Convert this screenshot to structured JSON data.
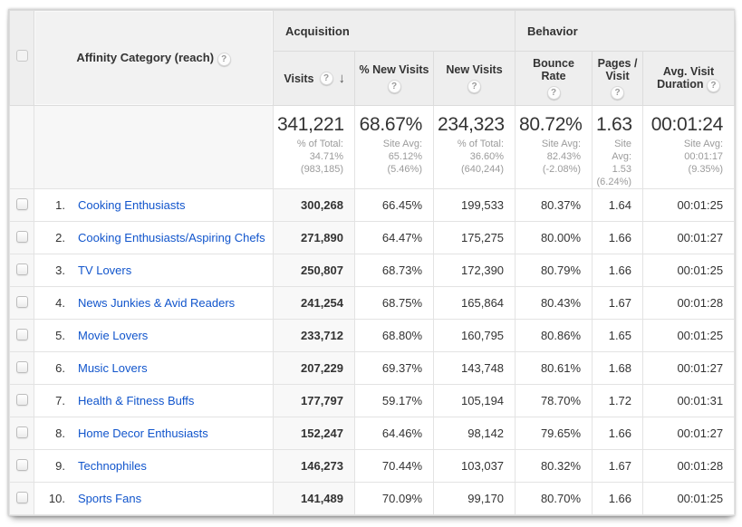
{
  "colors": {
    "link_blue": "#1155cc",
    "header_bg": "#eeeeee",
    "sorted_col_bg": "#f8f8f8"
  },
  "table": {
    "dimension_header": "Affinity Category (reach)",
    "group_headers": {
      "acquisition": "Acquisition",
      "behavior": "Behavior"
    },
    "columns": [
      {
        "label": "Visits",
        "sorted": "descending"
      },
      {
        "label": "% New Visits"
      },
      {
        "label": "New Visits"
      },
      {
        "label": "Bounce Rate"
      },
      {
        "label": "Pages / Visit"
      },
      {
        "label": "Avg. Visit Duration"
      }
    ],
    "icons": {
      "help": "?",
      "sort_descending": "↓"
    },
    "summary": {
      "visits": {
        "value": "341,221",
        "sub": [
          "% of Total:",
          "34.71%",
          "(983,185)"
        ]
      },
      "pct_new_visits": {
        "value": "68.67%",
        "sub": [
          "Site Avg:",
          "65.12%",
          "(5.46%)"
        ]
      },
      "new_visits": {
        "value": "234,323",
        "sub": [
          "% of Total:",
          "36.60%",
          "(640,244)"
        ]
      },
      "bounce_rate": {
        "value": "80.72%",
        "sub": [
          "Site Avg:",
          "82.43%",
          "(-2.08%)"
        ]
      },
      "pages_visit": {
        "value": "1.63",
        "sub": [
          "Site Avg:",
          "1.53",
          "(6.24%)"
        ]
      },
      "avg_duration": {
        "value": "00:01:24",
        "sub": [
          "Site Avg:",
          "00:01:17",
          "(9.35%)"
        ]
      }
    },
    "rows": [
      {
        "rank": "1.",
        "category": "Cooking Enthusiasts",
        "visits": "300,268",
        "pct_new_visits": "66.45%",
        "new_visits": "199,533",
        "bounce_rate": "80.37%",
        "pages_visit": "1.64",
        "avg_duration": "00:01:25"
      },
      {
        "rank": "2.",
        "category": "Cooking Enthusiasts/Aspiring Chefs",
        "visits": "271,890",
        "pct_new_visits": "64.47%",
        "new_visits": "175,275",
        "bounce_rate": "80.00%",
        "pages_visit": "1.66",
        "avg_duration": "00:01:27"
      },
      {
        "rank": "3.",
        "category": "TV Lovers",
        "visits": "250,807",
        "pct_new_visits": "68.73%",
        "new_visits": "172,390",
        "bounce_rate": "80.79%",
        "pages_visit": "1.66",
        "avg_duration": "00:01:25"
      },
      {
        "rank": "4.",
        "category": "News Junkies & Avid Readers",
        "visits": "241,254",
        "pct_new_visits": "68.75%",
        "new_visits": "165,864",
        "bounce_rate": "80.43%",
        "pages_visit": "1.67",
        "avg_duration": "00:01:28"
      },
      {
        "rank": "5.",
        "category": "Movie Lovers",
        "visits": "233,712",
        "pct_new_visits": "68.80%",
        "new_visits": "160,795",
        "bounce_rate": "80.86%",
        "pages_visit": "1.65",
        "avg_duration": "00:01:25"
      },
      {
        "rank": "6.",
        "category": "Music Lovers",
        "visits": "207,229",
        "pct_new_visits": "69.37%",
        "new_visits": "143,748",
        "bounce_rate": "80.61%",
        "pages_visit": "1.68",
        "avg_duration": "00:01:27"
      },
      {
        "rank": "7.",
        "category": "Health & Fitness Buffs",
        "visits": "177,797",
        "pct_new_visits": "59.17%",
        "new_visits": "105,194",
        "bounce_rate": "78.70%",
        "pages_visit": "1.72",
        "avg_duration": "00:01:31"
      },
      {
        "rank": "8.",
        "category": "Home Decor Enthusiasts",
        "visits": "152,247",
        "pct_new_visits": "64.46%",
        "new_visits": "98,142",
        "bounce_rate": "79.65%",
        "pages_visit": "1.66",
        "avg_duration": "00:01:27"
      },
      {
        "rank": "9.",
        "category": "Technophiles",
        "visits": "146,273",
        "pct_new_visits": "70.44%",
        "new_visits": "103,037",
        "bounce_rate": "80.32%",
        "pages_visit": "1.67",
        "avg_duration": "00:01:28"
      },
      {
        "rank": "10.",
        "category": "Sports Fans",
        "visits": "141,489",
        "pct_new_visits": "70.09%",
        "new_visits": "99,170",
        "bounce_rate": "80.70%",
        "pages_visit": "1.66",
        "avg_duration": "00:01:25"
      }
    ]
  }
}
